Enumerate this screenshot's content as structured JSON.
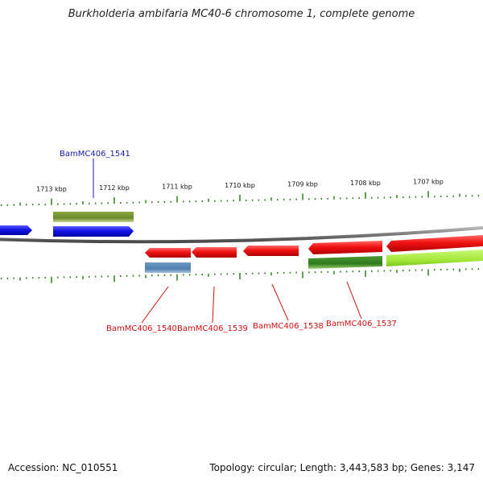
{
  "title": "Burkholderia ambifaria MC40-6 chromosome 1, complete genome",
  "footer": {
    "accession": "Accession: NC_010551",
    "summary": "Topology: circular; Length: 3,443,583 bp; Genes: 3,147"
  },
  "scale": {
    "ticks": [
      {
        "label": "1713 kbp",
        "kbp": 1713
      },
      {
        "label": "1712 kbp",
        "kbp": 1712
      },
      {
        "label": "1711 kbp",
        "kbp": 1711
      },
      {
        "label": "1710 kbp",
        "kbp": 1710
      },
      {
        "label": "1709 kbp",
        "kbp": 1709
      },
      {
        "label": "1708 kbp",
        "kbp": 1708
      },
      {
        "label": "1707 kbp",
        "kbp": 1707
      }
    ]
  },
  "colors": {
    "backbone": "#8a8a8a",
    "tick": "#2e7d1e",
    "forward_gene": "#1414e6",
    "reverse_gene": "#e81010",
    "label_forward": "#1a1aa8",
    "label_reverse": "#cc1111",
    "dark_green": "#6b8a2a",
    "steel_blue": "#4f7fae",
    "green_dark": "#2e7a1e",
    "lime": "#a6e83a"
  },
  "genes": [
    {
      "label": "BamMC406_1541",
      "strand": "forward"
    },
    {
      "label": "BamMC406_1540",
      "strand": "reverse"
    },
    {
      "label": "BamMC406_1539",
      "strand": "reverse"
    },
    {
      "label": "BamMC406_1538",
      "strand": "reverse"
    },
    {
      "label": "BamMC406_1537",
      "strand": "reverse"
    }
  ]
}
